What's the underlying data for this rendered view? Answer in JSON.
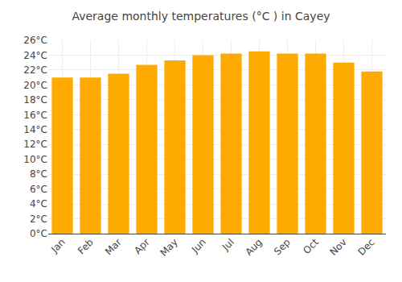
{
  "chart_data": {
    "type": "bar",
    "title": "Average monthly temperatures (°C ) in Cayey",
    "categories": [
      "Jan",
      "Feb",
      "Mar",
      "Apr",
      "May",
      "Jun",
      "Jul",
      "Aug",
      "Sep",
      "Oct",
      "Nov",
      "Dec"
    ],
    "values": [
      21.0,
      21.0,
      21.5,
      22.7,
      23.3,
      24.0,
      24.2,
      24.5,
      24.2,
      24.2,
      23.0,
      21.8
    ],
    "color": "#FFAA00",
    "ylim": [
      0,
      26
    ],
    "yticks": [
      {
        "value": 0,
        "label": "0°C"
      },
      {
        "value": 2,
        "label": "2°C"
      },
      {
        "value": 4,
        "label": "4°C"
      },
      {
        "value": 6,
        "label": "6°C"
      },
      {
        "value": 8,
        "label": "8°C"
      },
      {
        "value": 10,
        "label": "10°C"
      },
      {
        "value": 12,
        "label": "12°C"
      },
      {
        "value": 14,
        "label": "14°C"
      },
      {
        "value": 16,
        "label": "16°C"
      },
      {
        "value": 18,
        "label": "18°C"
      },
      {
        "value": 20,
        "label": "20°C"
      },
      {
        "value": 22,
        "label": "22°C"
      },
      {
        "value": 24,
        "label": "24°C"
      },
      {
        "value": 26,
        "label": "26°C"
      }
    ],
    "grid": true
  }
}
